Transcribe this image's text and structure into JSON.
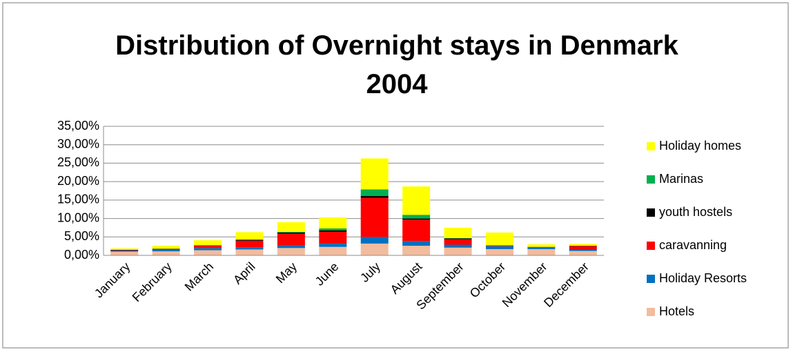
{
  "chart_data": {
    "type": "stacked_bar",
    "title": "Distribution of Overnight stays in Denmark 2004",
    "categories": [
      "January",
      "February",
      "March",
      "April",
      "May",
      "June",
      "July",
      "August",
      "September",
      "October",
      "November",
      "December"
    ],
    "series": [
      {
        "name": "Hotels",
        "color": "#f2bc9e",
        "values": [
          1.0,
          1.1,
          1.4,
          1.6,
          2.0,
          2.3,
          3.2,
          2.6,
          2.1,
          1.7,
          1.7,
          1.2
        ]
      },
      {
        "name": "Holiday Resorts",
        "color": "#0070c0",
        "values": [
          0.3,
          0.5,
          0.6,
          0.6,
          0.8,
          0.9,
          1.8,
          1.3,
          0.8,
          0.8,
          0.4,
          0.3
        ]
      },
      {
        "name": "caravanning",
        "color": "#ff0000",
        "values": [
          0.1,
          0.1,
          0.6,
          1.8,
          3.1,
          3.2,
          10.6,
          5.8,
          1.5,
          0.1,
          0.1,
          1.0
        ]
      },
      {
        "name": "youth hostels",
        "color": "#000000",
        "values": [
          0.1,
          0.1,
          0.1,
          0.2,
          0.3,
          0.4,
          0.5,
          0.3,
          0.2,
          0.1,
          0.1,
          0.1
        ]
      },
      {
        "name": "Marinas",
        "color": "#00b050",
        "values": [
          0,
          0,
          0.05,
          0.1,
          0.2,
          0.5,
          1.8,
          1.0,
          0.1,
          0,
          0,
          0
        ]
      },
      {
        "name": "Holiday homes",
        "color": "#ffff00",
        "values": [
          0.4,
          0.8,
          1.35,
          2.0,
          2.6,
          3.0,
          8.4,
          7.7,
          2.8,
          3.5,
          0.7,
          0.5
        ]
      }
    ],
    "ylim": [
      0,
      35
    ],
    "yticks": [
      {
        "value": 0,
        "label": "0,00%"
      },
      {
        "value": 5,
        "label": "5,00%"
      },
      {
        "value": 10,
        "label": "10,00%"
      },
      {
        "value": 15,
        "label": "15,00%"
      },
      {
        "value": 20,
        "label": "20,00%"
      },
      {
        "value": 25,
        "label": "25,00%"
      },
      {
        "value": 30,
        "label": "30,00%"
      },
      {
        "value": 35,
        "label": "35,00%"
      }
    ],
    "grid": true,
    "legend": "right"
  }
}
